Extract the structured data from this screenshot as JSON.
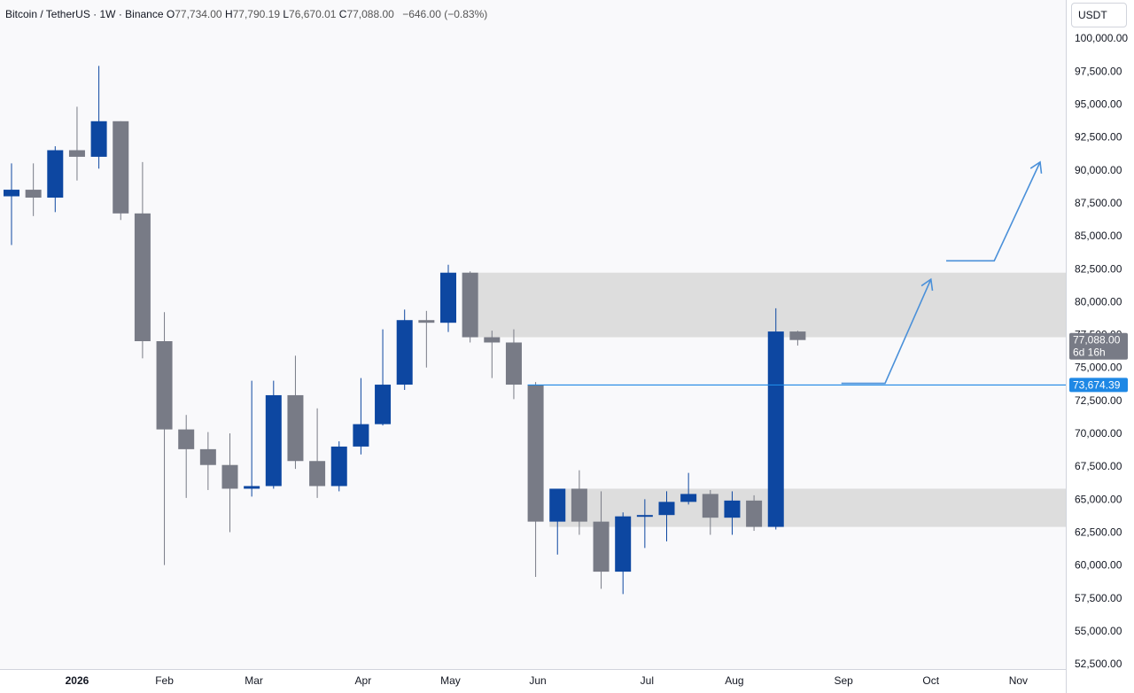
{
  "header": {
    "symbol": "Bitcoin / TetherUS · 1W · Binance",
    "o_label": "O",
    "o_value": "77,734.00",
    "h_label": "H",
    "h_value": "77,790.19",
    "l_label": "L",
    "l_value": "76,670.01",
    "c_label": "C",
    "c_value": "77,088.00",
    "change": "−646.00 (−0.83%)"
  },
  "currency_button": "USDT",
  "colors": {
    "up": "#0d47a1",
    "down": "#787b86",
    "zone": "#d9d9d9",
    "line": "#1e88e5",
    "arrow": "#4a90d9",
    "background": "#f9f9fb"
  },
  "chart_data": {
    "type": "candlestick",
    "ylim": [
      51500,
      102500
    ],
    "y_ticks": [
      52500,
      55000,
      57500,
      60000,
      62500,
      65000,
      67500,
      70000,
      72500,
      75000,
      77500,
      80000,
      82500,
      85000,
      87500,
      90000,
      92500,
      95000,
      97500,
      100000
    ],
    "y_tick_labels": [
      "52,500.00",
      "55,000.00",
      "57,500.00",
      "60,000.00",
      "62,500.00",
      "65,000.00",
      "67,500.00",
      "70,000.00",
      "72,500.00",
      "75,000.00",
      "77,500.00",
      "80,000.00",
      "82,500.00",
      "85,000.00",
      "87,500.00",
      "90,000.00",
      "92,500.00",
      "95,000.00",
      "97,500.00",
      "100,000.00"
    ],
    "x_labels": [
      {
        "label": "2026",
        "bar": 3.0,
        "bold": true
      },
      {
        "label": "Feb",
        "bar": 7.0
      },
      {
        "label": "Mar",
        "bar": 11.1
      },
      {
        "label": "Apr",
        "bar": 16.1
      },
      {
        "label": "May",
        "bar": 20.1
      },
      {
        "label": "Jun",
        "bar": 24.1
      },
      {
        "label": "Jul",
        "bar": 29.1
      },
      {
        "label": "Aug",
        "bar": 33.1
      },
      {
        "label": "Sep",
        "bar": 38.1
      },
      {
        "label": "Oct",
        "bar": 42.1
      },
      {
        "label": "Nov",
        "bar": 46.1
      }
    ],
    "candles": [
      {
        "o": 88000,
        "h": 90500,
        "l": 84300,
        "c": 88500
      },
      {
        "o": 88500,
        "h": 90500,
        "l": 86500,
        "c": 87900
      },
      {
        "o": 87900,
        "h": 91800,
        "l": 86800,
        "c": 91500
      },
      {
        "o": 91500,
        "h": 94800,
        "l": 89200,
        "c": 91000
      },
      {
        "o": 91000,
        "h": 97900,
        "l": 90100,
        "c": 93700
      },
      {
        "o": 93700,
        "h": 93700,
        "l": 86200,
        "c": 86700
      },
      {
        "o": 86700,
        "h": 90600,
        "l": 75700,
        "c": 77000
      },
      {
        "o": 77000,
        "h": 79200,
        "l": 60000,
        "c": 70300
      },
      {
        "o": 70300,
        "h": 71400,
        "l": 65100,
        "c": 68800
      },
      {
        "o": 68800,
        "h": 70100,
        "l": 65700,
        "c": 67600
      },
      {
        "o": 67600,
        "h": 70000,
        "l": 62500,
        "c": 65800
      },
      {
        "o": 65800,
        "h": 74000,
        "l": 65200,
        "c": 66000
      },
      {
        "o": 66000,
        "h": 74000,
        "l": 65800,
        "c": 72900
      },
      {
        "o": 72900,
        "h": 75900,
        "l": 67300,
        "c": 67900
      },
      {
        "o": 67900,
        "h": 71900,
        "l": 65100,
        "c": 66000
      },
      {
        "o": 66000,
        "h": 69400,
        "l": 65600,
        "c": 69000
      },
      {
        "o": 69000,
        "h": 74200,
        "l": 68400,
        "c": 70700
      },
      {
        "o": 70700,
        "h": 77900,
        "l": 70600,
        "c": 73700
      },
      {
        "o": 73700,
        "h": 79400,
        "l": 73300,
        "c": 78600
      },
      {
        "o": 78600,
        "h": 79300,
        "l": 75000,
        "c": 78400
      },
      {
        "o": 78400,
        "h": 82800,
        "l": 77700,
        "c": 82200
      },
      {
        "o": 82200,
        "h": 82300,
        "l": 76900,
        "c": 77300
      },
      {
        "o": 77300,
        "h": 77800,
        "l": 74200,
        "c": 76900
      },
      {
        "o": 76900,
        "h": 77900,
        "l": 72600,
        "c": 73700
      },
      {
        "o": 73700,
        "h": 73900,
        "l": 59100,
        "c": 63300
      },
      {
        "o": 63300,
        "h": 65600,
        "l": 60800,
        "c": 65800
      },
      {
        "o": 65800,
        "h": 67200,
        "l": 62300,
        "c": 63300
      },
      {
        "o": 63300,
        "h": 65600,
        "l": 58200,
        "c": 59500
      },
      {
        "o": 59500,
        "h": 64000,
        "l": 57800,
        "c": 63700
      },
      {
        "o": 63700,
        "h": 65000,
        "l": 61300,
        "c": 63800
      },
      {
        "o": 63800,
        "h": 65600,
        "l": 61800,
        "c": 64800
      },
      {
        "o": 64800,
        "h": 67000,
        "l": 64600,
        "c": 65400
      },
      {
        "o": 65400,
        "h": 65700,
        "l": 62300,
        "c": 63600
      },
      {
        "o": 63600,
        "h": 65600,
        "l": 62300,
        "c": 64900
      },
      {
        "o": 64900,
        "h": 65300,
        "l": 62600,
        "c": 62900
      },
      {
        "o": 62900,
        "h": 79500,
        "l": 62700,
        "c": 77734
      },
      {
        "o": 77734,
        "h": 77790,
        "l": 76670,
        "c": 77088
      }
    ],
    "zones": [
      {
        "from_bar": 21,
        "y_low": 77300,
        "y_high": 82200
      },
      {
        "from_bar": 25,
        "y_low": 62900,
        "y_high": 65800
      }
    ],
    "hline": {
      "value": 73674.39,
      "label": "73,674.39",
      "from_bar": 24
    },
    "price_tag": {
      "value": 77088,
      "label": "77,088.00",
      "sub": "6d 16h"
    },
    "arrows": [
      {
        "points": [
          [
            38.0,
            73800
          ],
          [
            40.0,
            73800
          ],
          [
            42.1,
            81700
          ]
        ]
      },
      {
        "points": [
          [
            42.8,
            83100
          ],
          [
            45.0,
            83100
          ],
          [
            47.1,
            90600
          ]
        ]
      }
    ]
  }
}
